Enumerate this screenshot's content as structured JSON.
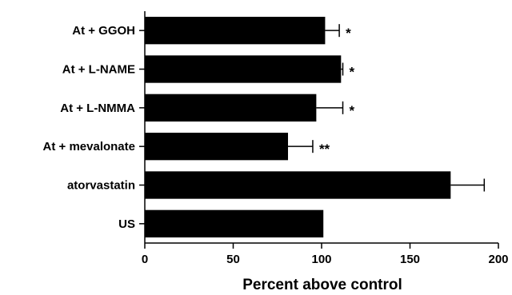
{
  "chart_data": {
    "type": "bar",
    "orientation": "horizontal",
    "categories": [
      "At + GGOH",
      "At + L-NAME",
      "At + L-NMMA",
      "At + mevalonate",
      "atorvastatin",
      "US"
    ],
    "values": [
      102,
      111,
      97,
      81,
      173,
      101
    ],
    "errors": [
      8,
      1,
      15,
      14,
      19,
      0
    ],
    "significance": [
      "*",
      "*",
      "*",
      "**",
      "",
      ""
    ],
    "title": "",
    "xlabel": "Percent above control",
    "ylabel": "",
    "xlim": [
      0,
      200
    ],
    "xticks": [
      0,
      50,
      100,
      150,
      200
    ],
    "grid": false,
    "legend": "none",
    "bar_color": "#000000"
  }
}
